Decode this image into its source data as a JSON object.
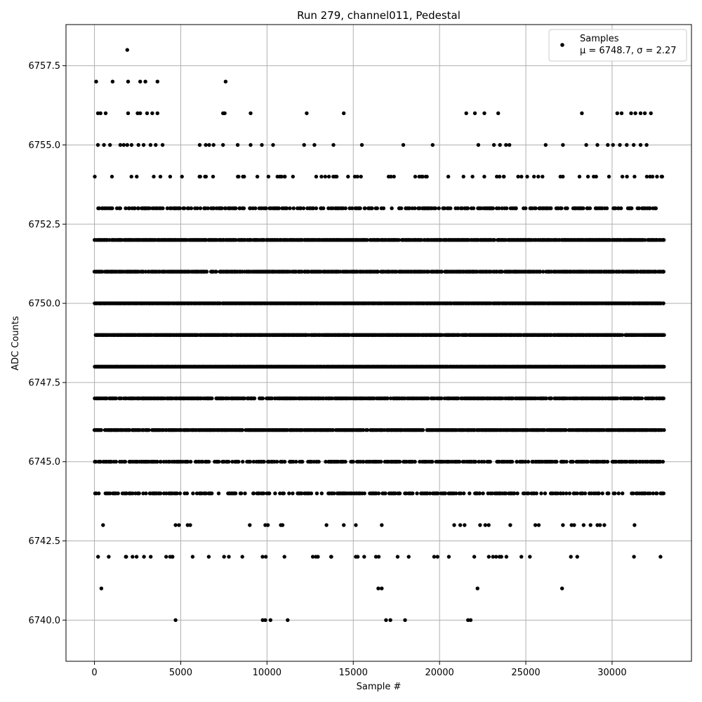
{
  "chart_data": {
    "type": "scatter",
    "title": "Run 279, channel011, Pedestal",
    "xlabel": "Sample #",
    "ylabel": "ADC Counts",
    "xlim": [
      -1650,
      34600
    ],
    "ylim": [
      6738.7,
      6758.8
    ],
    "xticks": [
      0,
      5000,
      10000,
      15000,
      20000,
      25000,
      30000
    ],
    "xtick_labels": [
      "0",
      "5000",
      "10000",
      "15000",
      "20000",
      "25000",
      "30000"
    ],
    "yticks": [
      6740.0,
      6742.5,
      6745.0,
      6747.5,
      6750.0,
      6752.5,
      6755.0,
      6757.5
    ],
    "ytick_labels": [
      "6740.0",
      "6742.5",
      "6745.0",
      "6747.5",
      "6750.0",
      "6752.5",
      "6755.0",
      "6757.5"
    ],
    "grid": true,
    "legend_position": "top-right",
    "legend": {
      "series_name": "Samples",
      "stats": "μ = 6748.7, σ = 2.27"
    },
    "series": [
      {
        "name": "Samples",
        "color": "#000000",
        "x_range": [
          0,
          33000
        ],
        "levels": [
          {
            "y": 6748,
            "density": 1.0
          },
          {
            "y": 6749,
            "density": 0.95
          },
          {
            "y": 6750,
            "density": 0.95
          },
          {
            "y": 6752,
            "density": 0.9
          },
          {
            "y": 6751,
            "density": 0.8
          },
          {
            "y": 6746,
            "density": 0.85
          },
          {
            "y": 6747,
            "density": 0.75
          },
          {
            "y": 6745,
            "density": 0.55
          },
          {
            "y": 6753,
            "density": 0.45
          },
          {
            "y": 6744,
            "density": 0.4
          },
          {
            "y": 6754,
            "density": 0.12
          },
          {
            "y": 6742,
            "density": 0.06
          }
        ],
        "sparse_points": [
          {
            "x": 100,
            "y": 6757
          },
          {
            "x": 1050,
            "y": 6757
          },
          {
            "x": 1950,
            "y": 6757
          },
          {
            "x": 2650,
            "y": 6757
          },
          {
            "x": 2950,
            "y": 6757
          },
          {
            "x": 3650,
            "y": 6757
          },
          {
            "x": 7600,
            "y": 6757
          },
          {
            "x": 1900,
            "y": 6758
          },
          {
            "x": 200,
            "y": 6756
          },
          {
            "x": 350,
            "y": 6756
          },
          {
            "x": 650,
            "y": 6756
          },
          {
            "x": 1950,
            "y": 6756
          },
          {
            "x": 2500,
            "y": 6756
          },
          {
            "x": 2650,
            "y": 6756
          },
          {
            "x": 3050,
            "y": 6756
          },
          {
            "x": 3350,
            "y": 6756
          },
          {
            "x": 3650,
            "y": 6756
          },
          {
            "x": 7450,
            "y": 6756
          },
          {
            "x": 7550,
            "y": 6756
          },
          {
            "x": 9050,
            "y": 6756
          },
          {
            "x": 12300,
            "y": 6756
          },
          {
            "x": 14450,
            "y": 6756
          },
          {
            "x": 21550,
            "y": 6756
          },
          {
            "x": 22050,
            "y": 6756
          },
          {
            "x": 22600,
            "y": 6756
          },
          {
            "x": 23400,
            "y": 6756
          },
          {
            "x": 28250,
            "y": 6756
          },
          {
            "x": 30300,
            "y": 6756
          },
          {
            "x": 30550,
            "y": 6756
          },
          {
            "x": 31100,
            "y": 6756
          },
          {
            "x": 31350,
            "y": 6756
          },
          {
            "x": 31650,
            "y": 6756
          },
          {
            "x": 31900,
            "y": 6756
          },
          {
            "x": 32250,
            "y": 6756
          },
          {
            "x": 200,
            "y": 6755
          },
          {
            "x": 550,
            "y": 6755
          },
          {
            "x": 900,
            "y": 6755
          },
          {
            "x": 1500,
            "y": 6755
          },
          {
            "x": 1700,
            "y": 6755
          },
          {
            "x": 1900,
            "y": 6755
          },
          {
            "x": 2150,
            "y": 6755
          },
          {
            "x": 2550,
            "y": 6755
          },
          {
            "x": 2850,
            "y": 6755
          },
          {
            "x": 3250,
            "y": 6755
          },
          {
            "x": 3550,
            "y": 6755
          },
          {
            "x": 3950,
            "y": 6755
          },
          {
            "x": 6100,
            "y": 6755
          },
          {
            "x": 6450,
            "y": 6755
          },
          {
            "x": 6650,
            "y": 6755
          },
          {
            "x": 6900,
            "y": 6755
          },
          {
            "x": 7450,
            "y": 6755
          },
          {
            "x": 8300,
            "y": 6755
          },
          {
            "x": 9050,
            "y": 6755
          },
          {
            "x": 9700,
            "y": 6755
          },
          {
            "x": 10350,
            "y": 6755
          },
          {
            "x": 12150,
            "y": 6755
          },
          {
            "x": 12750,
            "y": 6755
          },
          {
            "x": 13850,
            "y": 6755
          },
          {
            "x": 15500,
            "y": 6755
          },
          {
            "x": 17900,
            "y": 6755
          },
          {
            "x": 19600,
            "y": 6755
          },
          {
            "x": 22250,
            "y": 6755
          },
          {
            "x": 23150,
            "y": 6755
          },
          {
            "x": 23500,
            "y": 6755
          },
          {
            "x": 23850,
            "y": 6755
          },
          {
            "x": 24050,
            "y": 6755
          },
          {
            "x": 26150,
            "y": 6755
          },
          {
            "x": 27150,
            "y": 6755
          },
          {
            "x": 28500,
            "y": 6755
          },
          {
            "x": 29150,
            "y": 6755
          },
          {
            "x": 29750,
            "y": 6755
          },
          {
            "x": 30050,
            "y": 6755
          },
          {
            "x": 30450,
            "y": 6755
          },
          {
            "x": 30850,
            "y": 6755
          },
          {
            "x": 31250,
            "y": 6755
          },
          {
            "x": 31650,
            "y": 6755
          },
          {
            "x": 32000,
            "y": 6755
          },
          {
            "x": 500,
            "y": 6743
          },
          {
            "x": 4700,
            "y": 6743
          },
          {
            "x": 4900,
            "y": 6743
          },
          {
            "x": 5400,
            "y": 6743
          },
          {
            "x": 5550,
            "y": 6743
          },
          {
            "x": 9000,
            "y": 6743
          },
          {
            "x": 9900,
            "y": 6743
          },
          {
            "x": 10050,
            "y": 6743
          },
          {
            "x": 10800,
            "y": 6743
          },
          {
            "x": 10900,
            "y": 6743
          },
          {
            "x": 13450,
            "y": 6743
          },
          {
            "x": 14450,
            "y": 6743
          },
          {
            "x": 15150,
            "y": 6743
          },
          {
            "x": 16650,
            "y": 6743
          },
          {
            "x": 20850,
            "y": 6743
          },
          {
            "x": 21200,
            "y": 6743
          },
          {
            "x": 21450,
            "y": 6743
          },
          {
            "x": 22350,
            "y": 6743
          },
          {
            "x": 22650,
            "y": 6743
          },
          {
            "x": 22850,
            "y": 6743
          },
          {
            "x": 24100,
            "y": 6743
          },
          {
            "x": 25550,
            "y": 6743
          },
          {
            "x": 25750,
            "y": 6743
          },
          {
            "x": 27150,
            "y": 6743
          },
          {
            "x": 27650,
            "y": 6743
          },
          {
            "x": 27800,
            "y": 6743
          },
          {
            "x": 28350,
            "y": 6743
          },
          {
            "x": 28750,
            "y": 6743
          },
          {
            "x": 29150,
            "y": 6743
          },
          {
            "x": 29300,
            "y": 6743
          },
          {
            "x": 29550,
            "y": 6743
          },
          {
            "x": 31300,
            "y": 6743
          },
          {
            "x": 400,
            "y": 6741
          },
          {
            "x": 16450,
            "y": 6741
          },
          {
            "x": 16650,
            "y": 6741
          },
          {
            "x": 22200,
            "y": 6741
          },
          {
            "x": 27100,
            "y": 6741
          },
          {
            "x": 4700,
            "y": 6740
          },
          {
            "x": 9750,
            "y": 6740
          },
          {
            "x": 9900,
            "y": 6740
          },
          {
            "x": 10200,
            "y": 6740
          },
          {
            "x": 11200,
            "y": 6740
          },
          {
            "x": 16900,
            "y": 6740
          },
          {
            "x": 17150,
            "y": 6740
          },
          {
            "x": 18000,
            "y": 6740
          },
          {
            "x": 21650,
            "y": 6740
          },
          {
            "x": 21800,
            "y": 6740
          }
        ]
      }
    ]
  }
}
